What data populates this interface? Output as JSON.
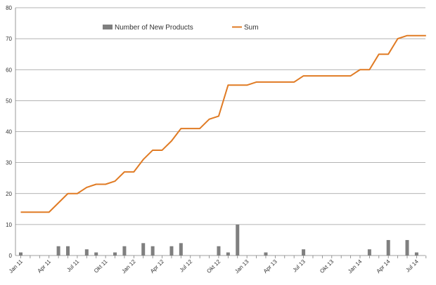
{
  "chart_data": {
    "type": "bar+line",
    "title": "",
    "xlabel": "",
    "ylabel": "",
    "ylim": [
      0,
      80
    ],
    "yticks": [
      0,
      10,
      20,
      30,
      40,
      50,
      60,
      70,
      80
    ],
    "grid": true,
    "legend_position": "top",
    "months": [
      "Jan 11",
      "Feb 11",
      "Mar 11",
      "Apr 11",
      "May 11",
      "Jun 11",
      "Jul 11",
      "Aug 11",
      "Sep 11",
      "Okt 11",
      "Nov 11",
      "Dec 11",
      "Jan 12",
      "Feb 12",
      "Mar 12",
      "Apr 12",
      "May 12",
      "Jun 12",
      "Jul 12",
      "Aug 12",
      "Sep 12",
      "Okt 12",
      "Nov 12",
      "Dec 12",
      "Jan 13",
      "Feb 13",
      "Mar 13",
      "Apr 13",
      "May 13",
      "Jun 13",
      "Jul 13",
      "Aug 13",
      "Sep 13",
      "Okt 13",
      "Nov 13",
      "Dec 13",
      "Jan 14",
      "Feb 14",
      "Mar 14",
      "Apr 14",
      "May 14",
      "Jun 14",
      "Jul 14",
      "Aug 14"
    ],
    "tick_labels": [
      "Jan 11",
      "Apr 11",
      "Jul 11",
      "Okt 11",
      "Jan 12",
      "Apr 12",
      "Jul 12",
      "Okt 12",
      "Jan 13",
      "Apr 13",
      "Jul 13",
      "Okt 13",
      "Jan 14",
      "Apr 14",
      "Jul 14"
    ],
    "series": [
      {
        "name": "Number of New Products",
        "type": "bar",
        "color": "#7f7f7f",
        "values": [
          1,
          0,
          0,
          0,
          3,
          3,
          0,
          2,
          1,
          0,
          1,
          3,
          0,
          4,
          3,
          0,
          3,
          4,
          0,
          0,
          0,
          3,
          1,
          10,
          0,
          0,
          1,
          0,
          0,
          0,
          2,
          0,
          0,
          0,
          0,
          0,
          0,
          2,
          0,
          5,
          0,
          5,
          1,
          0
        ]
      },
      {
        "name": "Sum",
        "type": "line",
        "color": "#e07b24",
        "values": [
          14,
          14,
          14,
          14,
          17,
          20,
          20,
          22,
          23,
          23,
          24,
          27,
          27,
          31,
          34,
          34,
          37,
          41,
          41,
          41,
          44,
          45,
          55,
          55,
          55,
          56,
          56,
          56,
          56,
          56,
          58,
          58,
          58,
          58,
          58,
          58,
          60,
          60,
          65,
          65,
          70,
          71,
          71,
          71
        ]
      }
    ]
  },
  "colors": {
    "grid": "#9a9a9a",
    "axis": "#808080",
    "bar": "#7f7f7f",
    "line": "#e07b24"
  }
}
